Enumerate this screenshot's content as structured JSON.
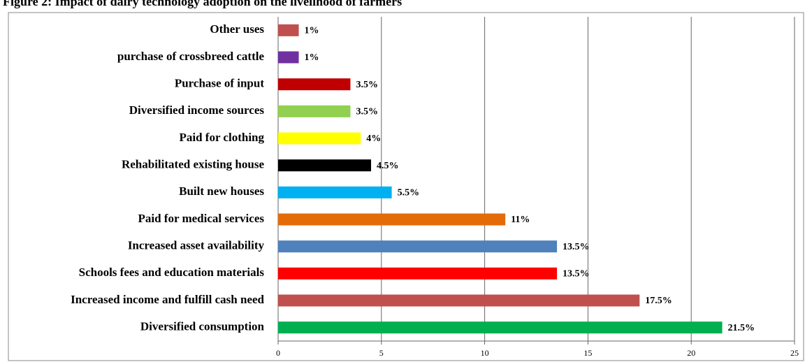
{
  "chart_data": {
    "type": "hbar",
    "title": "Figure 2: Impact of dairy technology adoption on the livelihood of farmers",
    "categories": [
      "Other uses",
      "purchase of crossbreed cattle",
      "Purchase of input",
      "Diversified income sources",
      "Paid for clothing",
      "Rehabilitated existing house",
      "Built new houses",
      "Paid for medical services",
      "Increased asset availability",
      "Schools fees and education materials",
      "Increased income and fulfill cash need",
      "Diversified consumption"
    ],
    "values": [
      1,
      1,
      3.5,
      3.5,
      4,
      4.5,
      5.5,
      11,
      13.5,
      13.5,
      17.5,
      21.5
    ],
    "value_labels": [
      "1%",
      "1%",
      "3.5%",
      "3.5%",
      "4%",
      "4.5%",
      "5.5%",
      "11%",
      "13.5%",
      "13.5%",
      "17.5%",
      "21.5%"
    ],
    "colors": [
      "#c0504d",
      "#7030a0",
      "#c00000",
      "#92d050",
      "#ffff00",
      "#000000",
      "#00b0f0",
      "#e36c09",
      "#4f81bd",
      "#ff0000",
      "#c0504d",
      "#00b050"
    ],
    "xlim": [
      0,
      25
    ],
    "xticks": [
      0,
      5,
      10,
      15,
      20,
      25
    ],
    "grid": true
  }
}
